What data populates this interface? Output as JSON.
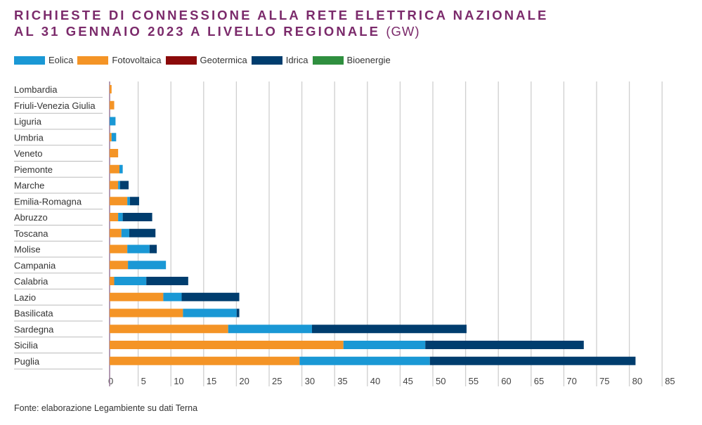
{
  "title_line1": "RICHIESTE DI CONNESSIONE ALLA RETE ELETTRICA NAZIONALE",
  "title_line2": "AL 31 GENNAIO 2023 A LIVELLO REGIONALE",
  "title_unit": "(GW)",
  "source": "Fonte: elaborazione Legambiente su dati Terna",
  "chart_data": {
    "type": "bar",
    "orientation": "horizontal",
    "stacked": true,
    "categories": [
      "Lombardia",
      "Friuli-Venezia Giulia",
      "Liguria",
      "Umbria",
      "Veneto",
      "Piemonte",
      "Marche",
      "Emilia-Romagna",
      "Abruzzo",
      "Toscana",
      "Molise",
      "Campania",
      "Calabria",
      "Lazio",
      "Basilicata",
      "Sardegna",
      "Sicilia",
      "Puglia"
    ],
    "series": [
      {
        "name": "Eolica",
        "color": "#1a98d5",
        "values": [
          0,
          0,
          0.9,
          0.7,
          0,
          0.5,
          0.3,
          0.4,
          0.7,
          1.2,
          3.4,
          5.8,
          4.9,
          2.8,
          8.2,
          12.8,
          12.5,
          19.9
        ]
      },
      {
        "name": "Fotovoltaica",
        "color": "#f49426",
        "values": [
          0.3,
          0.7,
          0,
          0.3,
          1.3,
          1.5,
          1.3,
          2.7,
          1.3,
          1.8,
          2.7,
          2.8,
          0.7,
          8.2,
          11.2,
          18.1,
          35.7,
          29.0
        ]
      },
      {
        "name": "Geotermica",
        "color": "#8b0a0a",
        "values": [
          0,
          0,
          0,
          0,
          0,
          0,
          0,
          0,
          0,
          0,
          0,
          0,
          0,
          0,
          0,
          0,
          0,
          0
        ]
      },
      {
        "name": "Idrica",
        "color": "#003d6e",
        "values": [
          0,
          0,
          0,
          0,
          0,
          0,
          1.3,
          1.4,
          4.5,
          4.0,
          1.1,
          0,
          6.4,
          8.8,
          0.4,
          23.6,
          24.2,
          31.4
        ]
      },
      {
        "name": "Bioenergie",
        "color": "#2f8f3f",
        "values": [
          0,
          0,
          0,
          0,
          0,
          0,
          0,
          0,
          0,
          0,
          0,
          0,
          0,
          0,
          0,
          0,
          0,
          0
        ]
      }
    ],
    "stack_order": [
      "Fotovoltaica",
      "Eolica",
      "Idrica",
      "Geotermica",
      "Bioenergie"
    ],
    "xlim": [
      0,
      85
    ],
    "xticks": [
      "0",
      "5",
      "10",
      "15",
      "20",
      "25",
      "30",
      "35",
      "40",
      "45",
      "50",
      "55",
      "60",
      "65",
      "70",
      "75",
      "80",
      "85"
    ],
    "grid": true,
    "legend_position": "top-left",
    "xlabel": "",
    "ylabel": ""
  }
}
